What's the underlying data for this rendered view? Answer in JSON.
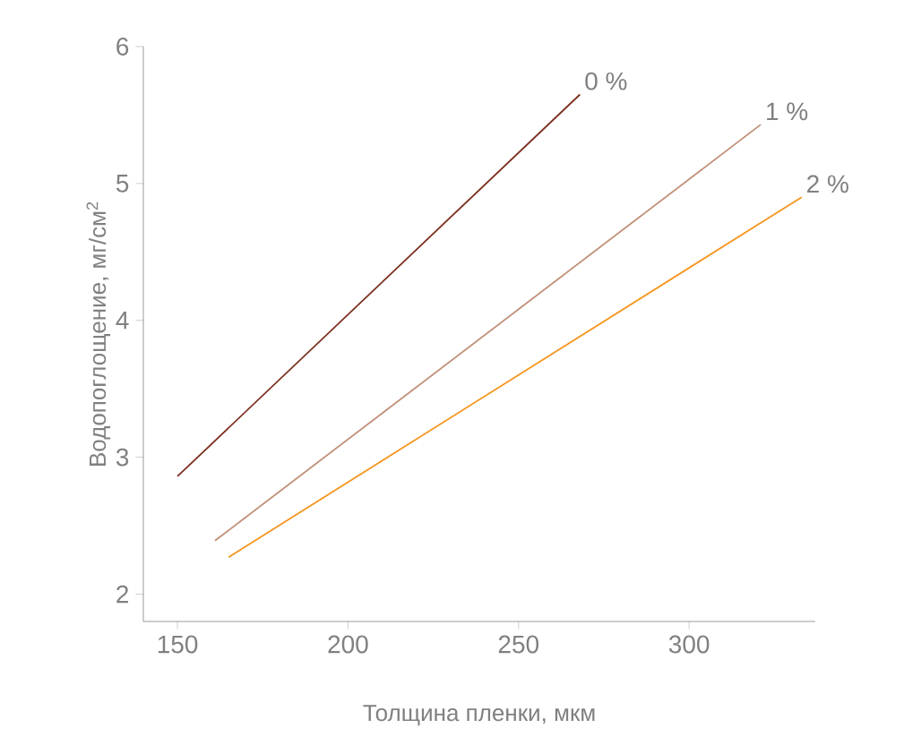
{
  "chart_data": {
    "type": "line",
    "xlabel": "Толщина пленки, мкм",
    "ylabel": "Водопоглощение, мг/см$^{2}$",
    "xlim": [
      140,
      337
    ],
    "ylim": [
      1.8,
      6
    ],
    "xticks": [
      150,
      200,
      250,
      300
    ],
    "yticks": [
      2,
      3,
      4,
      5,
      6
    ],
    "grid": false,
    "legend": false,
    "marker": "none",
    "line_style": "solid",
    "series": [
      {
        "name": "0 %",
        "color": "#7b2e1e",
        "x": [
          150,
          268
        ],
        "values": [
          2.86,
          5.65
        ]
      },
      {
        "name": "1 %",
        "color": "#c09078",
        "x": [
          161,
          321
        ],
        "values": [
          2.39,
          5.43
        ]
      },
      {
        "name": "2 %",
        "color": "#f7941d",
        "x": [
          165,
          333
        ],
        "values": [
          2.27,
          4.9
        ]
      }
    ]
  }
}
